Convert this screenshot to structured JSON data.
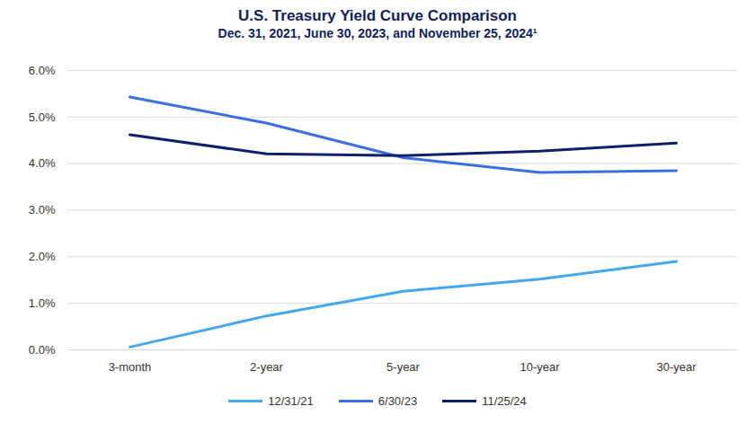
{
  "chart_data": {
    "type": "line",
    "title": "U.S. Treasury Yield Curve Comparison",
    "subtitle": "Dec. 31, 2021, June 30, 2023, and November 25, 2024¹",
    "categories": [
      "3-month",
      "2-year",
      "5-year",
      "10-year",
      "30-year"
    ],
    "series": [
      {
        "name": "12/31/21",
        "color": "#43a8f0",
        "values": [
          0.06,
          0.73,
          1.26,
          1.52,
          1.9
        ]
      },
      {
        "name": "6/30/23",
        "color": "#3a6fe0",
        "values": [
          5.43,
          4.87,
          4.13,
          3.81,
          3.85
        ]
      },
      {
        "name": "11/25/24",
        "color": "#0e1f6b",
        "values": [
          4.62,
          4.21,
          4.17,
          4.27,
          4.44
        ]
      }
    ],
    "ylim": [
      0,
      6
    ],
    "yticks": [
      {
        "value": 0,
        "label": "0.0%"
      },
      {
        "value": 1,
        "label": "1.0%"
      },
      {
        "value": 2,
        "label": "2.0%"
      },
      {
        "value": 3,
        "label": "3.0%"
      },
      {
        "value": 4,
        "label": "4.0%"
      },
      {
        "value": 5,
        "label": "5.0%"
      },
      {
        "value": 6,
        "label": "6.0%"
      }
    ],
    "grid": true,
    "legend": "bottom"
  }
}
